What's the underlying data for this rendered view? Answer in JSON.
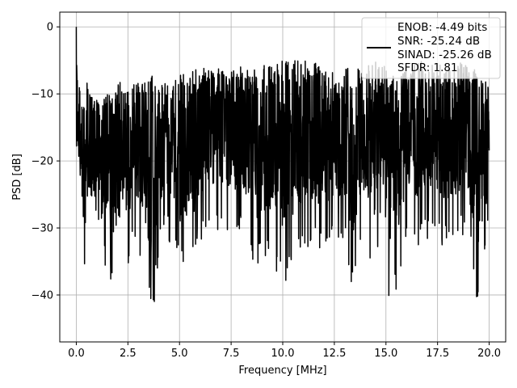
{
  "chart_data": {
    "type": "line",
    "title": "",
    "xlabel": "Frequency [MHz]",
    "ylabel": "PSD [dB]",
    "xlim": [
      -0.8,
      20.8
    ],
    "ylim": [
      -47,
      2.2
    ],
    "xticks": [
      0.0,
      2.5,
      5.0,
      7.5,
      10.0,
      12.5,
      15.0,
      17.5,
      20.0
    ],
    "xtick_labels": [
      "0.0",
      "2.5",
      "5.0",
      "7.5",
      "10.0",
      "12.5",
      "15.0",
      "17.5",
      "20.0"
    ],
    "yticks": [
      0,
      -10,
      -20,
      -30,
      -40
    ],
    "ytick_labels": [
      "0",
      "−10",
      "−20",
      "−30",
      "−40"
    ],
    "grid": true,
    "legend_position": "top-right",
    "legend_lines": [
      "ENOB: -4.49 bits",
      "SNR: -25.24 dB",
      "SINAD: -25.26 dB",
      "SFDR: 1.81"
    ],
    "series": [
      {
        "color": "#000000",
        "description": "dense noise-like PSD trace sampled at ~0.01 MHz spacing; representative envelope points listed",
        "x": [
          0.0,
          0.02,
          0.05,
          0.1,
          0.3,
          0.45,
          0.5,
          0.8,
          1.0,
          1.25,
          1.5,
          1.9,
          2.0,
          2.6,
          2.8,
          3.4,
          3.7,
          4.0,
          4.3,
          5.2,
          6.0,
          7.0,
          8.0,
          8.5,
          8.6,
          9.0,
          10.2,
          11.0,
          12.0,
          13.0,
          13.4,
          14.0,
          14.4,
          14.8,
          15.2,
          16.0,
          16.8,
          17.4,
          18.0,
          18.4,
          19.0,
          19.4,
          20.0
        ],
        "y_top": [
          0,
          -3,
          -7,
          -8,
          -11,
          -9,
          -8,
          -10,
          -10,
          -11,
          -9,
          -9,
          -8,
          -9,
          -8,
          -8,
          -7,
          -9,
          -8,
          -7,
          -6,
          -6,
          -5.5,
          -6,
          -6,
          -5.5,
          -5,
          -5,
          -5.5,
          -5.5,
          -6,
          -5.5,
          -5,
          -5,
          -5.5,
          -5.5,
          -5,
          -5.5,
          -5.5,
          -5,
          -5,
          -6,
          -9
        ],
        "y_bottom": [
          -17,
          -24,
          -22,
          -26,
          -34,
          -42,
          -28,
          -35,
          -30,
          -37,
          -35,
          -42,
          -30,
          -37,
          -31,
          -38,
          -44.5,
          -34,
          -31,
          -38,
          -33,
          -30,
          -32,
          -33,
          -37,
          -35,
          -38,
          -33,
          -34,
          -32,
          -41,
          -31,
          -38,
          -30,
          -43.5,
          -32,
          -33,
          -31,
          -34,
          -32,
          -32,
          -42,
          -31
        ]
      }
    ]
  }
}
